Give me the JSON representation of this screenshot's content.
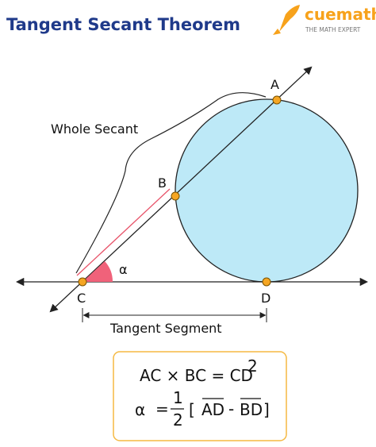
{
  "header": {
    "title": "Tangent Secant Theorem"
  },
  "logo": {
    "name": "cuemath",
    "tagline": "THE MATH EXPERT"
  },
  "points": [
    "A",
    "B",
    "C",
    "D"
  ],
  "angle": "α",
  "labels": {
    "whole_secant": "Whole Secant",
    "tangent_segment": "Tangent Segment"
  },
  "formula": {
    "line1": "AC × BC = CD",
    "line1_sup": "2",
    "line2": {
      "alpha": "α",
      "equals": "=",
      "numerator": "1",
      "denominator": "2",
      "open": "[",
      "arc1": "AD",
      "minus": "-",
      "arc2": "BD",
      "close": "]"
    }
  }
}
